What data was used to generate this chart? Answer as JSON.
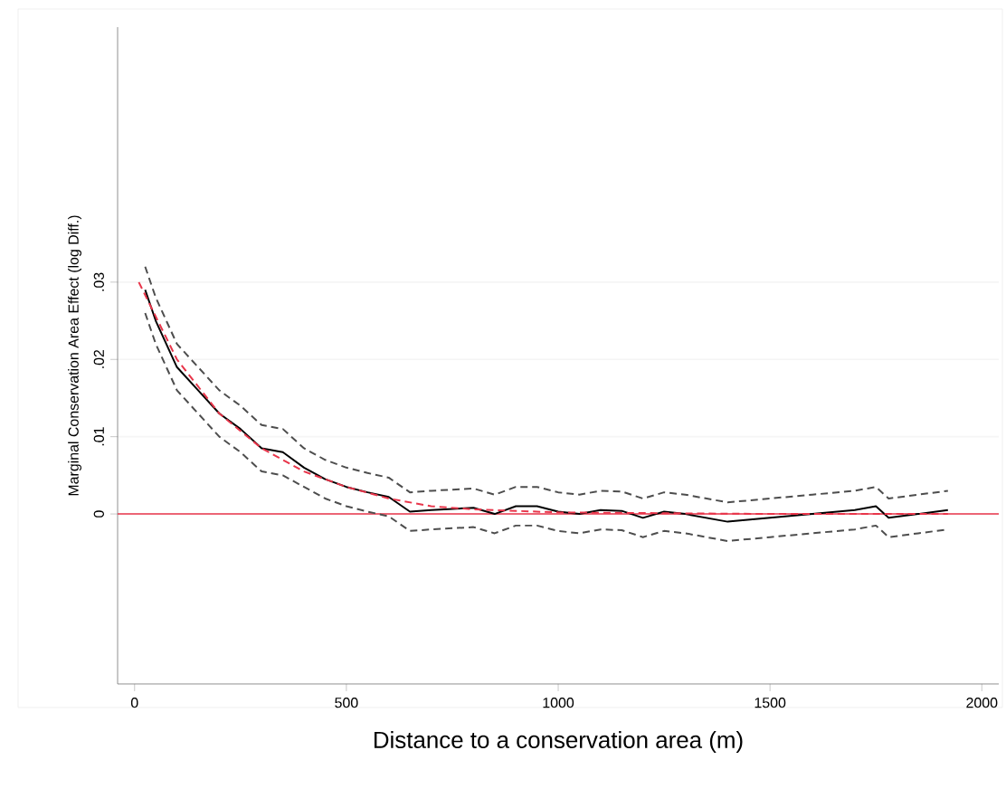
{
  "chart_data": {
    "type": "line",
    "xlabel": "Distance to a conservation area (m)",
    "ylabel": "Marginal Conservation Area Effect (log Diff.)",
    "xlim": [
      -40,
      2040
    ],
    "xticks": [
      0,
      500,
      1000,
      1500,
      2000
    ],
    "ylim": [
      -0.022,
      0.063
    ],
    "yticks": [
      {
        "value": 0,
        "label": "0"
      },
      {
        "value": 0.01,
        "label": ".01"
      },
      {
        "value": 0.02,
        "label": ".02"
      },
      {
        "value": 0.03,
        "label": ".03"
      }
    ],
    "grid": "y",
    "marker": "none",
    "ref_lines": [
      {
        "axis": "y",
        "value": 0,
        "color": "#e8354a",
        "line_style": "solid"
      }
    ],
    "series": [
      {
        "color": "#4d4d4d",
        "line_style": "dashed",
        "x": [
          25,
          50,
          100,
          150,
          200,
          250,
          300,
          350,
          400,
          450,
          500,
          550,
          600,
          650,
          700,
          800,
          850,
          900,
          950,
          1000,
          1050,
          1100,
          1150,
          1200,
          1250,
          1300,
          1400,
          1500,
          1600,
          1700,
          1750,
          1780,
          1850,
          1920
        ],
        "values": [
          0.032,
          0.028,
          0.022,
          0.019,
          0.016,
          0.014,
          0.0115,
          0.011,
          0.0085,
          0.007,
          0.006,
          0.0053,
          0.0047,
          0.0028,
          0.003,
          0.0033,
          0.0025,
          0.0035,
          0.0035,
          0.0028,
          0.0025,
          0.003,
          0.0029,
          0.002,
          0.0028,
          0.0025,
          0.0015,
          0.002,
          0.0025,
          0.003,
          0.0035,
          0.002,
          0.0025,
          0.003
        ]
      },
      {
        "color": "#000000",
        "line_style": "solid",
        "x": [
          25,
          50,
          100,
          150,
          200,
          250,
          300,
          350,
          400,
          450,
          500,
          550,
          600,
          650,
          700,
          800,
          850,
          900,
          950,
          1000,
          1050,
          1100,
          1150,
          1200,
          1250,
          1300,
          1400,
          1500,
          1600,
          1700,
          1750,
          1780,
          1850,
          1920
        ],
        "values": [
          0.029,
          0.025,
          0.019,
          0.016,
          0.013,
          0.011,
          0.0085,
          0.008,
          0.006,
          0.0045,
          0.0035,
          0.0028,
          0.0022,
          0.0003,
          0.0005,
          0.0008,
          0.0,
          0.001,
          0.001,
          0.0003,
          0.0,
          0.0005,
          0.0004,
          -0.0005,
          0.0003,
          0.0,
          -0.001,
          -0.0005,
          0.0,
          0.0005,
          0.001,
          -0.0005,
          0.0,
          0.0005
        ]
      },
      {
        "color": "#4d4d4d",
        "line_style": "dashed",
        "x": [
          25,
          50,
          100,
          150,
          200,
          250,
          300,
          350,
          400,
          450,
          500,
          550,
          600,
          650,
          700,
          800,
          850,
          900,
          950,
          1000,
          1050,
          1100,
          1150,
          1200,
          1250,
          1300,
          1400,
          1500,
          1600,
          1700,
          1750,
          1780,
          1850,
          1920
        ],
        "values": [
          0.026,
          0.022,
          0.016,
          0.013,
          0.01,
          0.008,
          0.0055,
          0.005,
          0.0035,
          0.002,
          0.001,
          0.0003,
          -0.0003,
          -0.0022,
          -0.002,
          -0.0017,
          -0.0025,
          -0.0015,
          -0.0015,
          -0.0022,
          -0.0025,
          -0.002,
          -0.0021,
          -0.003,
          -0.0022,
          -0.0025,
          -0.0035,
          -0.003,
          -0.0025,
          -0.002,
          -0.0015,
          -0.003,
          -0.0025,
          -0.002
        ]
      },
      {
        "color": "#e8354a",
        "line_style": "dashed",
        "x": [
          10,
          100,
          200,
          300,
          400,
          500,
          600,
          700,
          800,
          1000,
          1500,
          1920
        ],
        "values": [
          0.03,
          0.02,
          0.013,
          0.0085,
          0.0055,
          0.0035,
          0.002,
          0.001,
          0.0006,
          0.0002,
          0.0,
          0.0
        ]
      }
    ]
  }
}
